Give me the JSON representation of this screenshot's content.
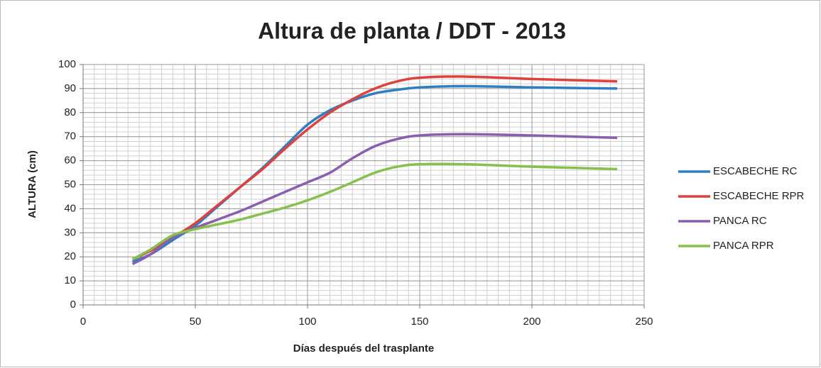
{
  "chart_data": {
    "type": "line",
    "title": "Altura de planta / DDT - 2013",
    "xlabel": "Días después del trasplante",
    "ylabel": "ALTURA (cm)",
    "x": [
      22,
      30,
      40,
      50,
      60,
      70,
      80,
      90,
      100,
      110,
      120,
      130,
      140,
      150,
      170,
      200,
      238
    ],
    "series": [
      {
        "name": "ESCABECHE RC",
        "color": "#2e7fc1",
        "values": [
          18,
          21,
          27,
          33,
          41,
          49,
          57,
          66,
          75,
          81,
          85,
          88,
          89.5,
          90.5,
          91,
          90.5,
          90
        ]
      },
      {
        "name": "ESCABECHE RPR",
        "color": "#e0413c",
        "values": [
          19,
          22.5,
          28,
          34,
          41.5,
          49,
          56.5,
          65,
          73,
          80,
          85.5,
          90,
          93,
          94.5,
          95,
          94,
          93
        ]
      },
      {
        "name": "PANCA RC",
        "color": "#8a5fb0",
        "values": [
          17,
          21,
          28,
          32,
          35.5,
          39,
          43,
          47,
          51,
          55,
          61,
          66,
          69,
          70.5,
          71,
          70.5,
          69.5
        ]
      },
      {
        "name": "PANCA RPR",
        "color": "#86c04d",
        "values": [
          19,
          23,
          29,
          31.5,
          33.5,
          35.5,
          38,
          40.5,
          43.5,
          47,
          51,
          55,
          57.5,
          58.5,
          58.5,
          57.5,
          56.5
        ]
      }
    ],
    "xlim": [
      0,
      250
    ],
    "xticks": [
      0,
      50,
      100,
      150,
      200,
      250
    ],
    "ylim": [
      0,
      100
    ],
    "yticks": [
      0,
      10,
      20,
      30,
      40,
      50,
      60,
      70,
      80,
      90,
      100
    ],
    "grid": true,
    "minor_grid": {
      "x": 5,
      "y": 2
    },
    "smooth": true,
    "legend": "right"
  }
}
